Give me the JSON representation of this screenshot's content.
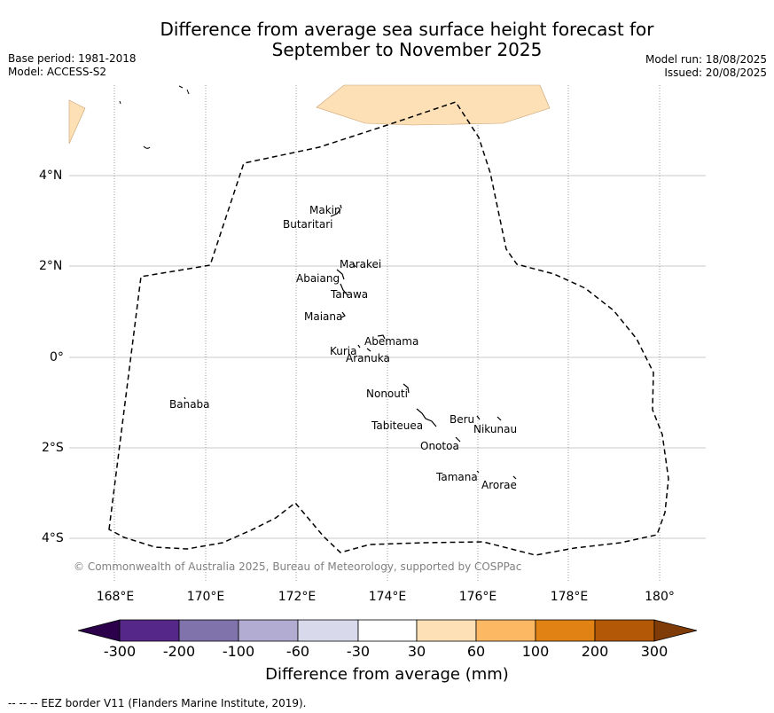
{
  "title_line1": "Difference from average sea surface height forecast for",
  "title_line2": "September to November 2025",
  "base_period": "Base period: 1981-2018",
  "model": "Model: ACCESS-S2",
  "model_run": "Model run: 18/08/2025",
  "issued": "Issued: 20/08/2025",
  "copyright": "© Commonwealth of Australia 2025, Bureau of Meteorology, supported by COSPPac",
  "lon_labels": [
    "168°E",
    "170°E",
    "172°E",
    "174°E",
    "176°E",
    "178°E",
    "180°"
  ],
  "lat_labels": [
    "4°N",
    "2°N",
    "0°",
    "2°S",
    "4°S"
  ],
  "islands": [
    {
      "name": "Makin"
    },
    {
      "name": "Butaritari"
    },
    {
      "name": "Marakei"
    },
    {
      "name": "Abaiang"
    },
    {
      "name": "Tarawa"
    },
    {
      "name": "Maiana"
    },
    {
      "name": "Abemama"
    },
    {
      "name": "Kuria"
    },
    {
      "name": "Aranuka"
    },
    {
      "name": "Nonouti"
    },
    {
      "name": "Banaba"
    },
    {
      "name": "Beru"
    },
    {
      "name": "Tabiteuea"
    },
    {
      "name": "Nikunau"
    },
    {
      "name": "Onotoa"
    },
    {
      "name": "Tamana"
    },
    {
      "name": "Arorae"
    }
  ],
  "colorbar": {
    "label": "Difference from average (mm)",
    "ticks": [
      "-300",
      "-200",
      "-100",
      "-60",
      "-30",
      "30",
      "60",
      "100",
      "200",
      "300"
    ],
    "colors": [
      "#2d004b",
      "#542788",
      "#8073ac",
      "#b2abd2",
      "#d8daeb",
      "#ffffff",
      "#fee0b6",
      "#fdb863",
      "#e08214",
      "#b35806",
      "#7f3b08"
    ]
  },
  "footnote": "--  --  -- EEZ border V11 (Flanders Marine Institute, 2019)."
}
